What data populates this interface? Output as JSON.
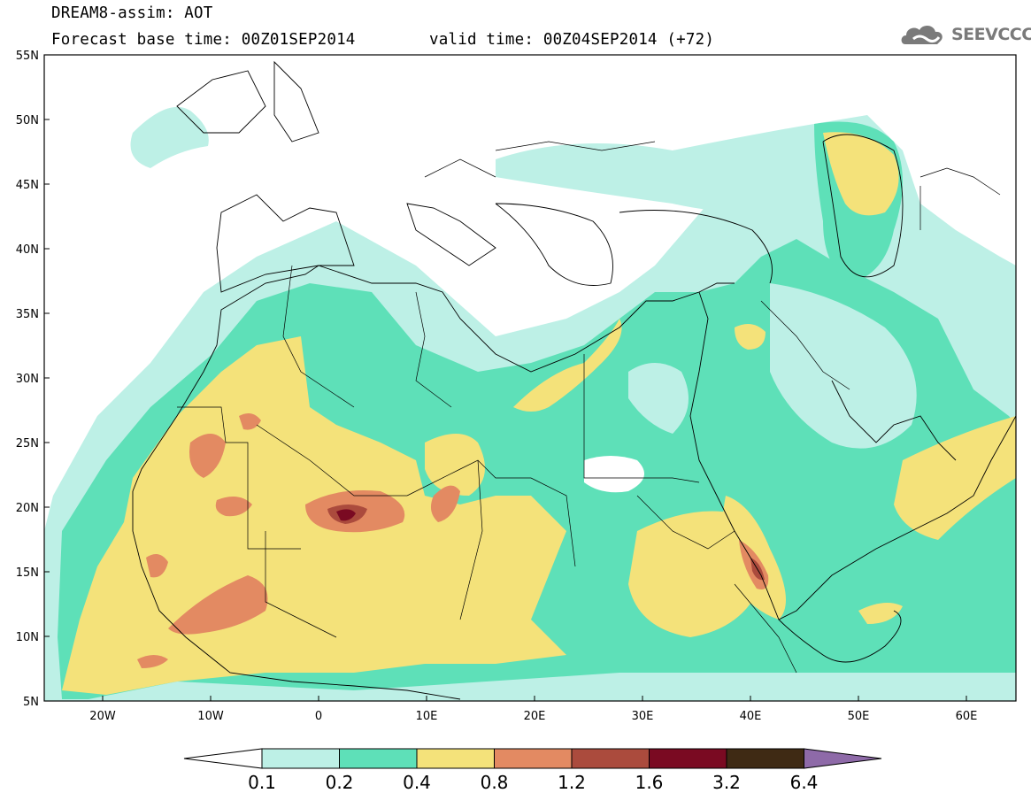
{
  "header": {
    "title": "DREAM8-assim: AOT",
    "base_time": "Forecast base time: 00Z01SEP2014",
    "valid_time": "valid time: 00Z04SEP2014 (+72)"
  },
  "logo": {
    "icon": "cloud-logo-icon",
    "text": "SEEVCCC",
    "color": "#7a7a7a"
  },
  "map": {
    "lon_range": [
      -25,
      65
    ],
    "lat_range": [
      5,
      55
    ],
    "lat_ticks": [
      "5N",
      "10N",
      "15N",
      "20N",
      "25N",
      "30N",
      "35N",
      "40N",
      "45N",
      "50N",
      "55N"
    ],
    "lon_ticks": [
      "20W",
      "10W",
      "0",
      "10E",
      "20E",
      "30E",
      "40E",
      "50E",
      "60E"
    ]
  },
  "legend": {
    "levels": [
      "0.1",
      "0.2",
      "0.4",
      "0.8",
      "1.2",
      "1.6",
      "3.2",
      "6.4"
    ],
    "colors": [
      "#ffffff",
      "#bdf0e6",
      "#5ee0b8",
      "#f4e27a",
      "#e38a62",
      "#ab4b3d",
      "#7a0a22",
      "#3f2a14",
      "#8e6aa8"
    ]
  }
}
